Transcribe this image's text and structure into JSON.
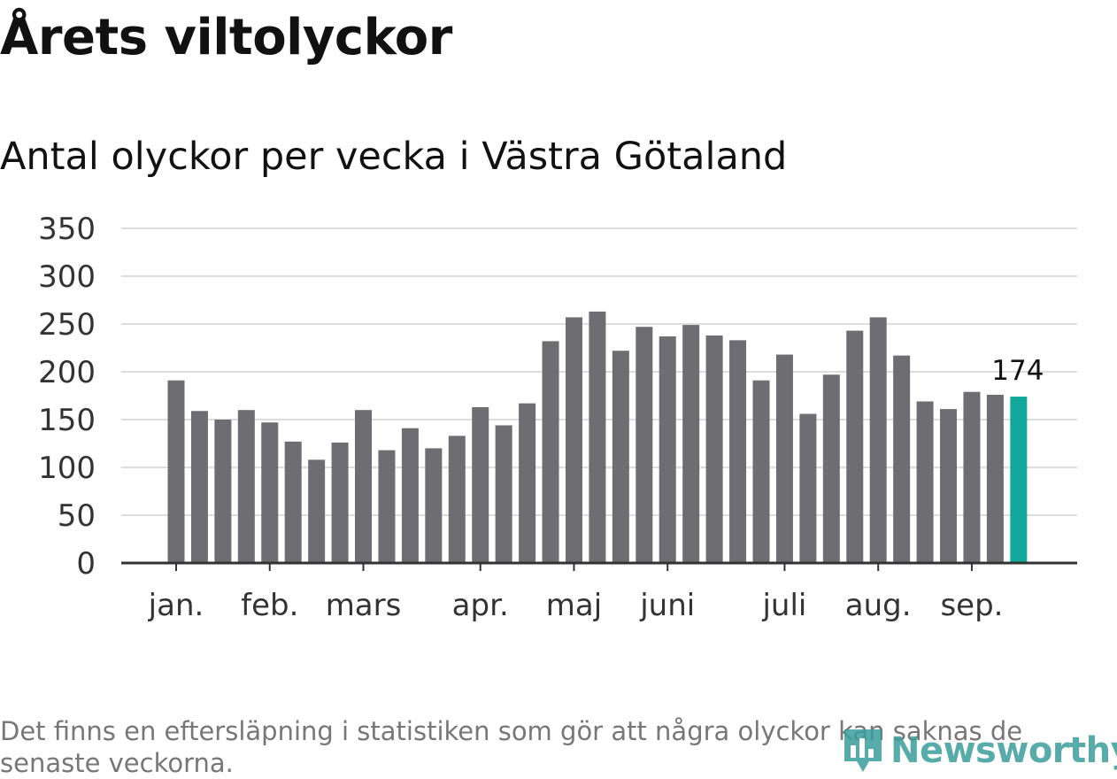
{
  "header": {
    "title": "Årets viltolyckor",
    "subtitle": "Antal olyckor per vecka i Västra Götaland"
  },
  "footer": {
    "note": "Det finns en eftersläpning i statistiken som gör att några olyckor kan saknas de senaste veckorna.",
    "brand": "Newsworthy",
    "brand_icon": "bar-chart-pin-icon"
  },
  "colors": {
    "bar": "#6d6d72",
    "highlight": "#12a89b",
    "grid": "#dddddd",
    "axis": "#333333",
    "brand": "#3a9d9a"
  },
  "chart_data": {
    "type": "bar",
    "title": "Antal olyckor per vecka i Västra Götaland",
    "xlabel": "",
    "ylabel": "",
    "ylim": [
      0,
      350
    ],
    "yticks": [
      0,
      50,
      100,
      150,
      200,
      250,
      300,
      350
    ],
    "grid": true,
    "values": [
      191,
      159,
      150,
      160,
      147,
      127,
      108,
      126,
      160,
      118,
      141,
      120,
      133,
      163,
      144,
      167,
      232,
      257,
      263,
      222,
      247,
      237,
      249,
      238,
      233,
      191,
      218,
      156,
      197,
      243,
      257,
      217,
      169,
      161,
      179,
      176,
      174
    ],
    "highlight_index": 36,
    "annotation": {
      "index": 36,
      "text": "174"
    },
    "months": [
      {
        "label": "jan.",
        "bar_index": 0
      },
      {
        "label": "feb.",
        "bar_index": 4
      },
      {
        "label": "mars",
        "bar_index": 8
      },
      {
        "label": "apr.",
        "bar_index": 13
      },
      {
        "label": "maj",
        "bar_index": 17
      },
      {
        "label": "juni",
        "bar_index": 21
      },
      {
        "label": "juli",
        "bar_index": 26
      },
      {
        "label": "aug.",
        "bar_index": 30
      },
      {
        "label": "sep.",
        "bar_index": 34
      }
    ]
  }
}
